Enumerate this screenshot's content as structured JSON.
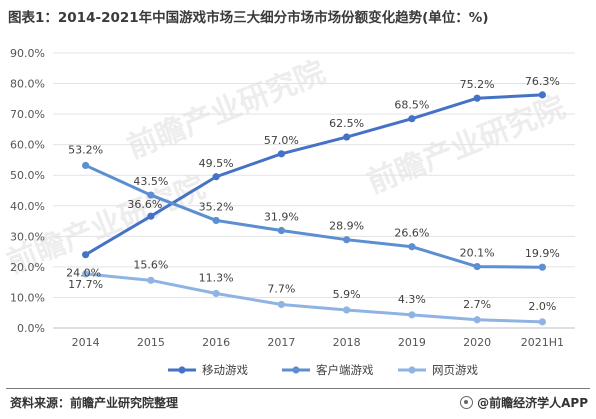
{
  "title": "图表1：2014-2021年中国游戏市场三大细分市场市场份额变化趋势(单位：%)",
  "source": "资料来源：前瞻产业研究院整理",
  "brand": "@前瞻经济学人APP",
  "watermark": "前瞻产业研究院",
  "chart_data": {
    "type": "line",
    "categories": [
      "2014",
      "2015",
      "2016",
      "2017",
      "2018",
      "2019",
      "2020",
      "2021H1"
    ],
    "y_ticks": [
      "0.0%",
      "10.0%",
      "20.0%",
      "30.0%",
      "40.0%",
      "50.0%",
      "60.0%",
      "70.0%",
      "80.0%",
      "90.0%"
    ],
    "ylim": [
      0,
      90
    ],
    "grid": true,
    "legend_position": "bottom",
    "series": [
      {
        "name": "移动游戏",
        "color": "#4472c4",
        "values": [
          24.0,
          36.6,
          49.5,
          57.0,
          62.5,
          68.5,
          75.2,
          76.3
        ],
        "labels": [
          "24.0%",
          "36.6%",
          "49.5%",
          "57.0%",
          "62.5%",
          "68.5%",
          "75.2%",
          "76.3%"
        ]
      },
      {
        "name": "客户端游戏",
        "color": "#5b8fd1",
        "values": [
          53.2,
          43.5,
          35.2,
          31.9,
          28.9,
          26.6,
          20.1,
          19.9
        ],
        "labels": [
          "53.2%",
          "43.5%",
          "35.2%",
          "31.9%",
          "28.9%",
          "26.6%",
          "20.1%",
          "19.9%"
        ]
      },
      {
        "name": "网页游戏",
        "color": "#8fb4e3",
        "values": [
          17.7,
          15.6,
          11.3,
          7.7,
          5.9,
          4.3,
          2.7,
          2.0
        ],
        "labels": [
          "17.7%",
          "15.6%",
          "11.3%",
          "7.7%",
          "5.9%",
          "4.3%",
          "2.7%",
          "2.0%"
        ]
      }
    ]
  }
}
